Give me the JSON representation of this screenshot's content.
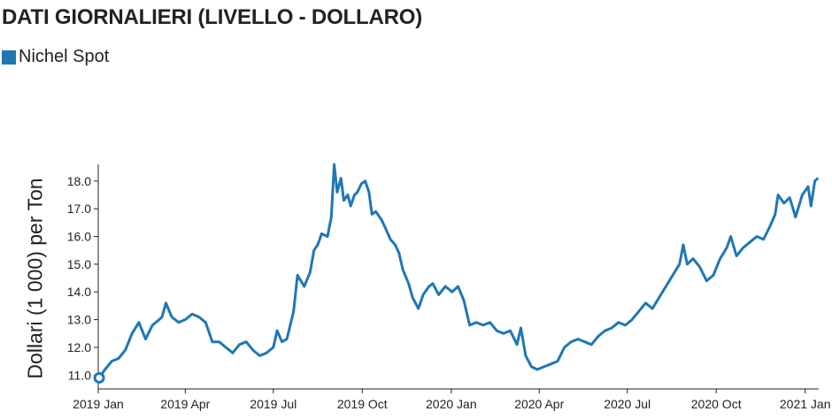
{
  "title": "DATI GIORNALIERI (LIVELLO - DOLLARO)",
  "legend": {
    "label": "Nichel Spot",
    "color": "#1f77b4"
  },
  "chart_data": {
    "type": "line",
    "title": "DATI GIORNALIERI (LIVELLO - DOLLARO)",
    "ylabel": "Dollari (1 000) per Ton",
    "xlabel": "",
    "ylim": [
      10.5,
      18.6
    ],
    "yticks": [
      11.0,
      12.0,
      13.0,
      14.0,
      15.0,
      16.0,
      17.0,
      18.0
    ],
    "ytick_labels": [
      "11.0",
      "12.0",
      "13.0",
      "14.0",
      "15.0",
      "16.0",
      "17.0",
      "18.0"
    ],
    "xlim": [
      "2019-01-01",
      "2021-01-15"
    ],
    "xticks": [
      "2019-01-01",
      "2019-04-01",
      "2019-07-01",
      "2019-10-01",
      "2020-01-01",
      "2020-04-01",
      "2020-07-01",
      "2020-10-01",
      "2021-01-01"
    ],
    "xtick_labels": [
      "2019 Jan",
      "2019 Apr",
      "2019 Jul",
      "2019 Oct",
      "2020 Jan",
      "2020 Apr",
      "2020 Jul",
      "2020 Oct",
      "2021 Jan"
    ],
    "grid": false,
    "legend_position": "top-left",
    "start_marker": true,
    "series": [
      {
        "name": "Nichel Spot",
        "color": "#1f77b4",
        "points": [
          [
            "2019-01-02",
            10.9
          ],
          [
            "2019-01-08",
            11.2
          ],
          [
            "2019-01-15",
            11.5
          ],
          [
            "2019-01-22",
            11.6
          ],
          [
            "2019-01-29",
            11.9
          ],
          [
            "2019-02-05",
            12.5
          ],
          [
            "2019-02-12",
            12.9
          ],
          [
            "2019-02-19",
            12.3
          ],
          [
            "2019-02-26",
            12.8
          ],
          [
            "2019-03-05",
            13.0
          ],
          [
            "2019-03-08",
            13.1
          ],
          [
            "2019-03-12",
            13.6
          ],
          [
            "2019-03-18",
            13.1
          ],
          [
            "2019-03-25",
            12.9
          ],
          [
            "2019-04-01",
            13.0
          ],
          [
            "2019-04-08",
            13.2
          ],
          [
            "2019-04-15",
            13.1
          ],
          [
            "2019-04-22",
            12.9
          ],
          [
            "2019-04-29",
            12.2
          ],
          [
            "2019-05-06",
            12.2
          ],
          [
            "2019-05-13",
            12.0
          ],
          [
            "2019-05-20",
            11.8
          ],
          [
            "2019-05-27",
            12.1
          ],
          [
            "2019-06-03",
            12.2
          ],
          [
            "2019-06-10",
            11.9
          ],
          [
            "2019-06-17",
            11.7
          ],
          [
            "2019-06-24",
            11.8
          ],
          [
            "2019-07-01",
            12.0
          ],
          [
            "2019-07-05",
            12.6
          ],
          [
            "2019-07-10",
            12.2
          ],
          [
            "2019-07-15",
            12.3
          ],
          [
            "2019-07-22",
            13.3
          ],
          [
            "2019-07-26",
            14.6
          ],
          [
            "2019-08-02",
            14.2
          ],
          [
            "2019-08-08",
            14.7
          ],
          [
            "2019-08-12",
            15.5
          ],
          [
            "2019-08-16",
            15.7
          ],
          [
            "2019-08-20",
            16.1
          ],
          [
            "2019-08-26",
            16.0
          ],
          [
            "2019-08-30",
            16.7
          ],
          [
            "2019-09-02",
            18.6
          ],
          [
            "2019-09-05",
            17.6
          ],
          [
            "2019-09-09",
            18.1
          ],
          [
            "2019-09-12",
            17.3
          ],
          [
            "2019-09-16",
            17.5
          ],
          [
            "2019-09-19",
            17.1
          ],
          [
            "2019-09-23",
            17.5
          ],
          [
            "2019-09-26",
            17.6
          ],
          [
            "2019-09-30",
            17.9
          ],
          [
            "2019-10-04",
            18.0
          ],
          [
            "2019-10-08",
            17.6
          ],
          [
            "2019-10-11",
            16.8
          ],
          [
            "2019-10-15",
            16.9
          ],
          [
            "2019-10-21",
            16.6
          ],
          [
            "2019-10-25",
            16.3
          ],
          [
            "2019-10-30",
            15.9
          ],
          [
            "2019-11-04",
            15.7
          ],
          [
            "2019-11-08",
            15.4
          ],
          [
            "2019-11-12",
            14.8
          ],
          [
            "2019-11-18",
            14.3
          ],
          [
            "2019-11-22",
            13.8
          ],
          [
            "2019-11-28",
            13.4
          ],
          [
            "2019-12-03",
            13.9
          ],
          [
            "2019-12-09",
            14.2
          ],
          [
            "2019-12-13",
            14.3
          ],
          [
            "2019-12-19",
            13.9
          ],
          [
            "2019-12-26",
            14.2
          ],
          [
            "2020-01-02",
            14.0
          ],
          [
            "2020-01-08",
            14.2
          ],
          [
            "2020-01-14",
            13.7
          ],
          [
            "2020-01-20",
            12.8
          ],
          [
            "2020-01-27",
            12.9
          ],
          [
            "2020-02-03",
            12.8
          ],
          [
            "2020-02-10",
            12.9
          ],
          [
            "2020-02-17",
            12.6
          ],
          [
            "2020-02-24",
            12.5
          ],
          [
            "2020-03-02",
            12.6
          ],
          [
            "2020-03-09",
            12.1
          ],
          [
            "2020-03-13",
            12.7
          ],
          [
            "2020-03-18",
            11.7
          ],
          [
            "2020-03-24",
            11.3
          ],
          [
            "2020-03-30",
            11.2
          ],
          [
            "2020-04-06",
            11.3
          ],
          [
            "2020-04-13",
            11.4
          ],
          [
            "2020-04-20",
            11.5
          ],
          [
            "2020-04-27",
            12.0
          ],
          [
            "2020-05-04",
            12.2
          ],
          [
            "2020-05-11",
            12.3
          ],
          [
            "2020-05-18",
            12.2
          ],
          [
            "2020-05-25",
            12.1
          ],
          [
            "2020-06-01",
            12.4
          ],
          [
            "2020-06-08",
            12.6
          ],
          [
            "2020-06-15",
            12.7
          ],
          [
            "2020-06-22",
            12.9
          ],
          [
            "2020-06-29",
            12.8
          ],
          [
            "2020-07-06",
            13.0
          ],
          [
            "2020-07-13",
            13.3
          ],
          [
            "2020-07-20",
            13.6
          ],
          [
            "2020-07-27",
            13.4
          ],
          [
            "2020-08-03",
            13.8
          ],
          [
            "2020-08-10",
            14.2
          ],
          [
            "2020-08-17",
            14.6
          ],
          [
            "2020-08-24",
            15.0
          ],
          [
            "2020-08-28",
            15.7
          ],
          [
            "2020-09-01",
            15.0
          ],
          [
            "2020-09-07",
            15.2
          ],
          [
            "2020-09-14",
            14.9
          ],
          [
            "2020-09-21",
            14.4
          ],
          [
            "2020-09-28",
            14.6
          ],
          [
            "2020-10-05",
            15.2
          ],
          [
            "2020-10-12",
            15.6
          ],
          [
            "2020-10-16",
            16.0
          ],
          [
            "2020-10-22",
            15.3
          ],
          [
            "2020-10-29",
            15.6
          ],
          [
            "2020-11-05",
            15.8
          ],
          [
            "2020-11-12",
            16.0
          ],
          [
            "2020-11-19",
            15.9
          ],
          [
            "2020-11-26",
            16.4
          ],
          [
            "2020-12-01",
            16.8
          ],
          [
            "2020-12-04",
            17.5
          ],
          [
            "2020-12-10",
            17.2
          ],
          [
            "2020-12-16",
            17.4
          ],
          [
            "2020-12-22",
            16.7
          ],
          [
            "2020-12-29",
            17.5
          ],
          [
            "2021-01-04",
            17.8
          ],
          [
            "2021-01-07",
            17.1
          ],
          [
            "2021-01-11",
            18.0
          ],
          [
            "2021-01-14",
            18.1
          ]
        ]
      }
    ]
  }
}
